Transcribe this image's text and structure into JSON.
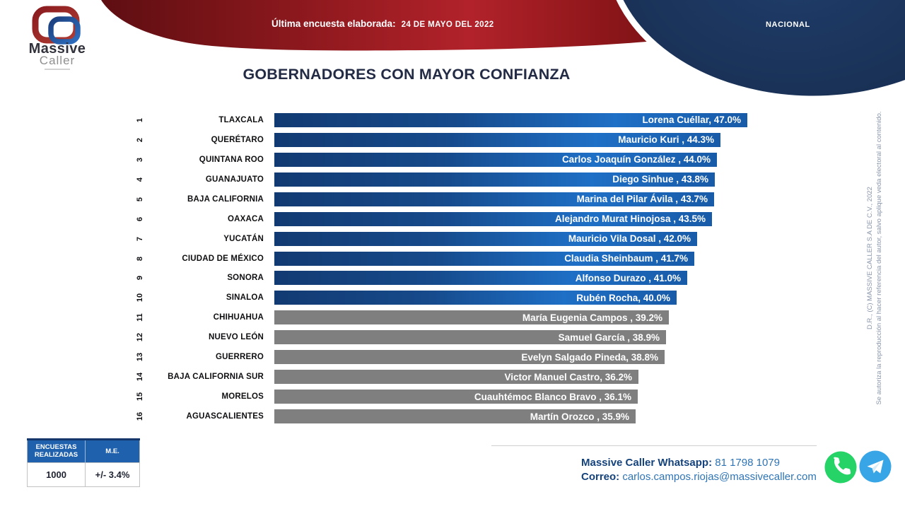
{
  "header": {
    "logo": {
      "brand_line1": "Massive",
      "brand_line2": "Caller"
    },
    "banner": {
      "label": "Última encuesta elaborada:",
      "date": "24 DE MAYO DEL 2022"
    },
    "region": "NACIONAL"
  },
  "title": "GOBERNADORES CON MAYOR CONFIANZA",
  "chart_data": {
    "type": "bar",
    "orientation": "horizontal",
    "title": "GOBERNADORES CON MAYOR CONFIANZA",
    "value_unit": "%",
    "xlim": [
      0,
      47
    ],
    "groups": {
      "blue": "ranks 1-10 blue gradient bars",
      "gray": "ranks 11-16 gray bars"
    },
    "rows": [
      {
        "rank": 1,
        "state": "TLAXCALA",
        "governor": "Lorena Cuéllar",
        "value": 47.0,
        "bar_label": "Lorena Cuéllar, 47.0%",
        "group": "blue"
      },
      {
        "rank": 2,
        "state": "QUERÉTARO",
        "governor": "Mauricio Kuri",
        "value": 44.3,
        "bar_label": "Mauricio Kuri , 44.3%",
        "group": "blue"
      },
      {
        "rank": 3,
        "state": "QUINTANA ROO",
        "governor": "Carlos Joaquín González",
        "value": 44.0,
        "bar_label": "Carlos Joaquín González , 44.0%",
        "group": "blue"
      },
      {
        "rank": 4,
        "state": "GUANAJUATO",
        "governor": "Diego Sinhue",
        "value": 43.8,
        "bar_label": "Diego Sinhue , 43.8%",
        "group": "blue"
      },
      {
        "rank": 5,
        "state": "BAJA CALIFORNIA",
        "governor": "Marina del Pilar Ávila",
        "value": 43.7,
        "bar_label": "Marina del Pilar Ávila , 43.7%",
        "group": "blue"
      },
      {
        "rank": 6,
        "state": "OAXACA",
        "governor": "Alejandro Murat Hinojosa",
        "value": 43.5,
        "bar_label": "Alejandro Murat Hinojosa , 43.5%",
        "group": "blue"
      },
      {
        "rank": 7,
        "state": "YUCATÁN",
        "governor": "Mauricio Vila Dosal",
        "value": 42.0,
        "bar_label": "Mauricio Vila Dosal , 42.0%",
        "group": "blue"
      },
      {
        "rank": 8,
        "state": "CIUDAD DE MÉXICO",
        "governor": "Claudia Sheinbaum",
        "value": 41.7,
        "bar_label": "Claudia Sheinbaum , 41.7%",
        "group": "blue"
      },
      {
        "rank": 9,
        "state": "SONORA",
        "governor": "Alfonso Durazo",
        "value": 41.0,
        "bar_label": "Alfonso Durazo , 41.0%",
        "group": "blue"
      },
      {
        "rank": 10,
        "state": "SINALOA",
        "governor": "Rubén Rocha",
        "value": 40.0,
        "bar_label": "Rubén Rocha, 40.0%",
        "group": "blue"
      },
      {
        "rank": 11,
        "state": "CHIHUAHUA",
        "governor": "María Eugenia Campos",
        "value": 39.2,
        "bar_label": "María Eugenia Campos , 39.2%",
        "group": "gray"
      },
      {
        "rank": 12,
        "state": "NUEVO LEÓN",
        "governor": "Samuel García",
        "value": 38.9,
        "bar_label": "Samuel García , 38.9%",
        "group": "gray"
      },
      {
        "rank": 13,
        "state": "GUERRERO",
        "governor": "Evelyn Salgado Pineda",
        "value": 38.8,
        "bar_label": "Evelyn Salgado Pineda, 38.8%",
        "group": "gray"
      },
      {
        "rank": 14,
        "state": "BAJA CALIFORNIA SUR",
        "governor": "Victor Manuel Castro",
        "value": 36.2,
        "bar_label": "Victor Manuel Castro, 36.2%",
        "group": "gray"
      },
      {
        "rank": 15,
        "state": "MORELOS",
        "governor": "Cuauhtémoc Blanco Bravo",
        "value": 36.1,
        "bar_label": "Cuauhtémoc Blanco Bravo , 36.1%",
        "group": "gray"
      },
      {
        "rank": 16,
        "state": "AGUASCALIENTES",
        "governor": "Martín Orozco",
        "value": 35.9,
        "bar_label": "Martín Orozco , 35.9%",
        "group": "gray"
      }
    ]
  },
  "summary_table": {
    "headers": [
      "ENCUESTAS REALIZADAS",
      "M.E."
    ],
    "values": [
      "1000",
      "+/- 3.4%"
    ]
  },
  "contact": {
    "whatsapp_label": "Massive Caller Whatsapp:",
    "whatsapp_number": "81 1798 1079",
    "email_label": "Correo:",
    "email": "carlos.campos.riojas@massivecaller.com"
  },
  "copyright": {
    "line1": "D.R., (C) MASSIVE CALLER S.A DE C.V., 2022",
    "line2": "Se autoriza la reproducción al hacer referencia del autor, salvo aplique veda electoral al contenido."
  },
  "colors": {
    "bar_blue_start": "#123a72",
    "bar_blue_mid": "#1e6fc6",
    "bar_blue_end": "#185ba8",
    "bar_gray": "#7f7f7f",
    "banner_red": "#a11d23",
    "header_navy": "#16294a",
    "table_header_blue": "#2061ae",
    "dark_text_blue": "#14427c",
    "accent_text_blue": "#2e74b5",
    "whatsapp_green": "#25d366",
    "telegram_blue": "#37a5e6"
  }
}
